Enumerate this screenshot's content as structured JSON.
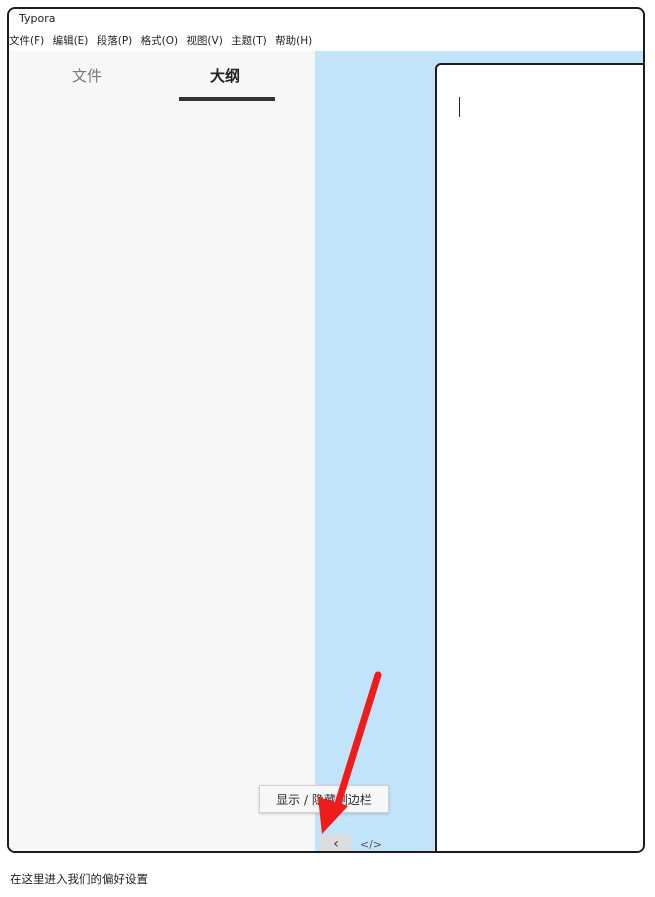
{
  "window": {
    "title": "Typora"
  },
  "menubar": {
    "items": [
      {
        "label": "文件(F)"
      },
      {
        "label": "编辑(E)"
      },
      {
        "label": "段落(P)"
      },
      {
        "label": "格式(O)"
      },
      {
        "label": "视图(V)"
      },
      {
        "label": "主题(T)"
      },
      {
        "label": "帮助(H)"
      }
    ]
  },
  "sidebar": {
    "tabs": [
      {
        "label": "文件",
        "active": false
      },
      {
        "label": "大纲",
        "active": true
      }
    ]
  },
  "tooltip": {
    "text": "显示 / 隐藏侧边栏"
  },
  "bottombar": {
    "toggle_sidebar_icon": "chevron-left-icon",
    "toggle_sidebar_glyph": "‹",
    "source_mode_icon": "code-icon",
    "source_mode_glyph": "</>"
  },
  "annotation": {
    "arrow_color": "#f01b1b"
  },
  "colors": {
    "editor_background": "#c2e4fb",
    "sidebar_background": "#f7f7f7"
  },
  "caption": {
    "text": "在这里进入我们的偏好设置"
  }
}
